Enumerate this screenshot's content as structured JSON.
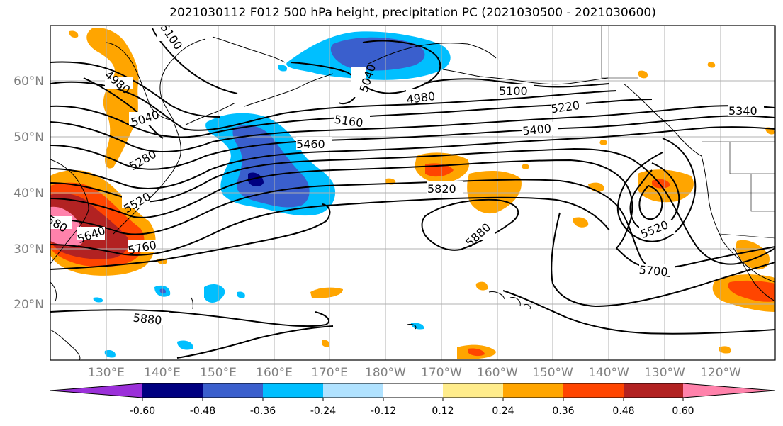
{
  "title": "2021030112 F012 500 hPa height, precipitation PC (2021030500 - 2021030600)",
  "lat_labels": [
    "60°N",
    "50°N",
    "40°N",
    "30°N",
    "20°N"
  ],
  "lon_labels": [
    "130°E",
    "140°E",
    "150°E",
    "160°E",
    "170°E",
    "180°W",
    "170°W",
    "160°W",
    "150°W",
    "140°W",
    "130°W",
    "120°W"
  ],
  "contour_labels": [
    "5100",
    "4980",
    "5040",
    "5280",
    "5520",
    "5640",
    "5760",
    "5160",
    "5460",
    "5040",
    "4980",
    "5100",
    "5220",
    "5340",
    "5400",
    "5820",
    "5880",
    "5520",
    "5700",
    "5880",
    "580"
  ],
  "colorbar": {
    "ticks": [
      "-0.60",
      "-0.48",
      "-0.36",
      "-0.24",
      "-0.12",
      "0.12",
      "0.24",
      "0.36",
      "0.48",
      "0.60"
    ],
    "colors": [
      "#9b30d9",
      "#000080",
      "#3a5fcd",
      "#00bfff",
      "#b0e2ff",
      "#ffffff",
      "#ffec8b",
      "#ffa500",
      "#ff4500",
      "#b22222",
      "#ff82ab"
    ]
  }
}
